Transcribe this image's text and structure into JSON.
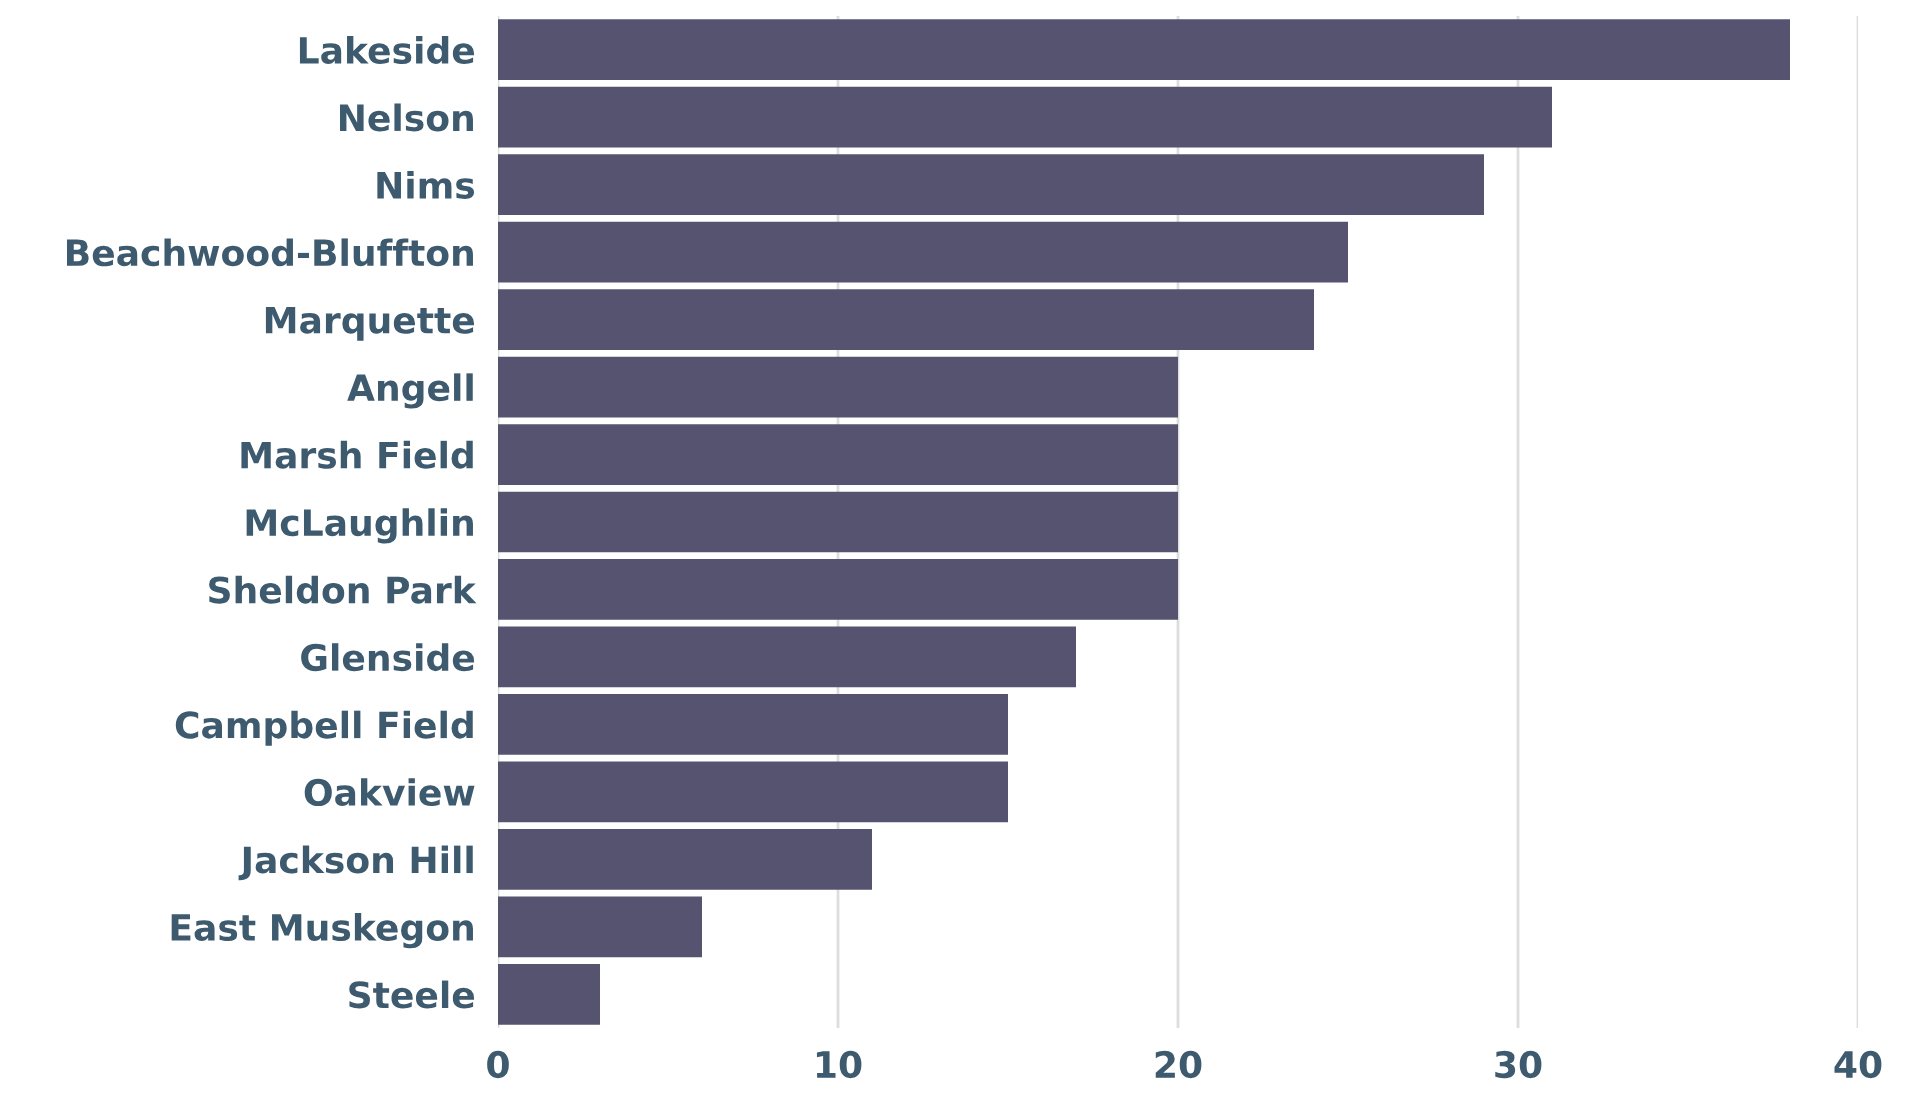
{
  "chart_data": {
    "type": "bar",
    "orientation": "horizontal",
    "categories": [
      "Lakeside",
      "Nelson",
      "Nims",
      "Beachwood-Bluffton",
      "Marquette",
      "Angell",
      "Marsh Field",
      "McLaughlin",
      "Sheldon Park",
      "Glenside",
      "Campbell Field",
      "Oakview",
      "Jackson Hill",
      "East Muskegon",
      "Steele"
    ],
    "values": [
      38,
      31,
      29,
      25,
      24,
      20,
      20,
      20,
      20,
      17,
      15,
      15,
      11,
      6,
      3
    ],
    "color": "#55536f",
    "xlim": [
      0,
      40
    ],
    "xticks": [
      0,
      10,
      20,
      30,
      40
    ],
    "grid": "x",
    "legend": false
  }
}
